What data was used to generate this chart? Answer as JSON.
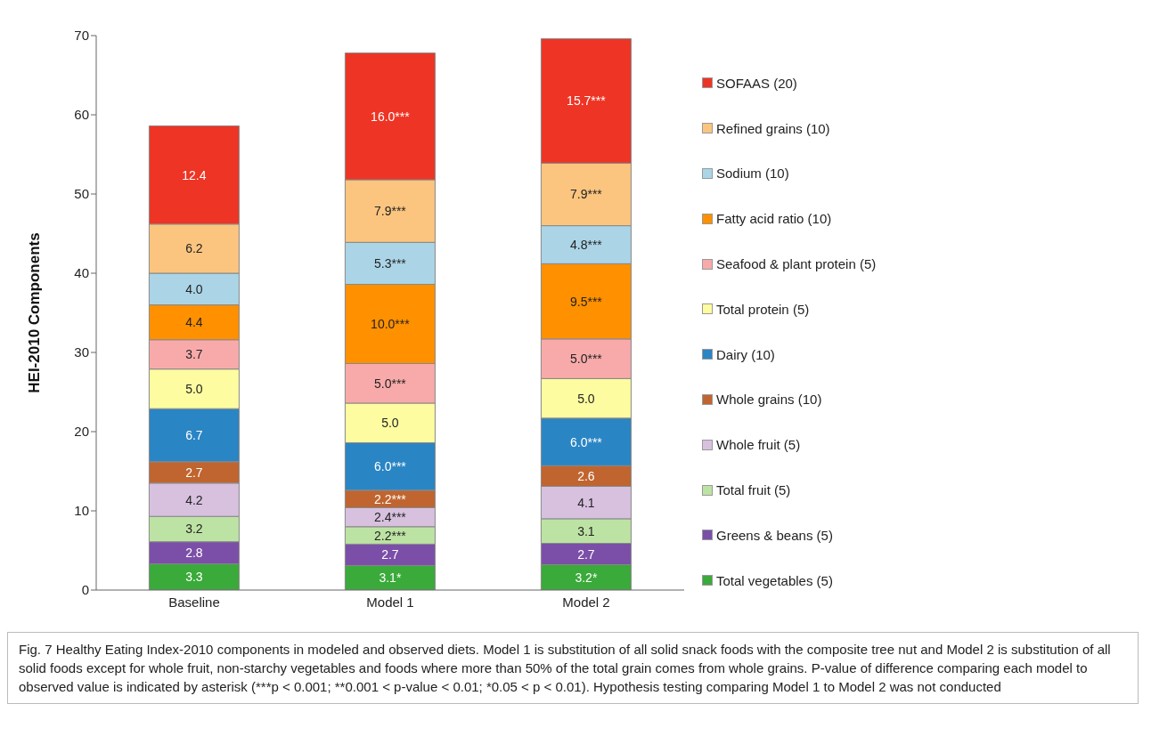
{
  "chart_data": {
    "type": "bar",
    "stacked": true,
    "ylabel": "HEI-2010 Components",
    "categories": [
      "Baseline",
      "Model 1",
      "Model 2"
    ],
    "ylim": [
      0,
      70
    ],
    "yticks": [
      0,
      10,
      20,
      30,
      40,
      50,
      60,
      70
    ],
    "grid": false,
    "legend": "right",
    "series": [
      {
        "name": "Total vegetables (5)",
        "color": "#3aaa3a",
        "values": [
          3.3,
          3.1,
          3.2
        ],
        "value_labels": [
          "3.3",
          "3.1*",
          "3.2*"
        ]
      },
      {
        "name": "Greens & beans (5)",
        "color": "#7b4fa8",
        "values": [
          2.8,
          2.7,
          2.7
        ],
        "value_labels": [
          "2.8",
          "2.7",
          "2.7"
        ]
      },
      {
        "name": "Total fruit (5)",
        "color": "#bde3a4",
        "values": [
          3.2,
          2.2,
          3.1
        ],
        "value_labels": [
          "3.2",
          "2.2***",
          "3.1"
        ]
      },
      {
        "name": "Whole fruit (5)",
        "color": "#d7c1df",
        "values": [
          4.2,
          2.4,
          4.1
        ],
        "value_labels": [
          "4.2",
          "2.4***",
          "4.1"
        ]
      },
      {
        "name": "Whole grains (10)",
        "color": "#c0652f",
        "values": [
          2.7,
          2.2,
          2.6
        ],
        "value_labels": [
          "2.7",
          "2.2***",
          "2.6"
        ]
      },
      {
        "name": "Dairy (10)",
        "color": "#2a85c4",
        "values": [
          6.7,
          6.0,
          6.0
        ],
        "value_labels": [
          "6.7",
          "6.0***",
          "6.0***"
        ]
      },
      {
        "name": "Total protein (5)",
        "color": "#fdfca0",
        "values": [
          5.0,
          5.0,
          5.0
        ],
        "value_labels": [
          "5.0",
          "5.0",
          "5.0"
        ]
      },
      {
        "name": "Seafood & plant protein (5)",
        "color": "#f8aaaa",
        "values": [
          3.7,
          5.0,
          5.0
        ],
        "value_labels": [
          "3.7",
          "5.0***",
          "5.0***"
        ]
      },
      {
        "name": "Fatty acid ratio (10)",
        "color": "#ff9000",
        "values": [
          4.4,
          10.0,
          9.5
        ],
        "value_labels": [
          "4.4",
          "10.0***",
          "9.5***"
        ]
      },
      {
        "name": "Sodium (10)",
        "color": "#abd5e7",
        "values": [
          4.0,
          5.3,
          4.8
        ],
        "value_labels": [
          "4.0",
          "5.3***",
          "4.8***"
        ]
      },
      {
        "name": "Refined grains (10)",
        "color": "#fcc57f",
        "values": [
          6.2,
          7.9,
          7.9
        ],
        "value_labels": [
          "6.2",
          "7.9***",
          "7.9***"
        ]
      },
      {
        "name": "SOFAAS (20)",
        "color": "#ee3424",
        "values": [
          12.4,
          16.0,
          15.7
        ],
        "value_labels": [
          "12.4",
          "16.0***",
          "15.7***"
        ]
      }
    ],
    "annotations": [
      "Fig. 7 Healthy Eating Index-2010 components in modeled and observed diets. Model 1 is substitution of all solid snack foods with the composite tree nut and Model 2 is substitution of all solid foods except for whole fruit, non-starchy vegetables and foods where more than 50% of the total grain comes from whole grains. P-value of difference comparing each model to observed value is indicated by asterisk (***p < 0.001; **0.001 < p-value < 0.01; *0.05 < p < 0.01). Hypothesis testing comparing Model 1 to Model 2 was not conducted"
    ]
  }
}
